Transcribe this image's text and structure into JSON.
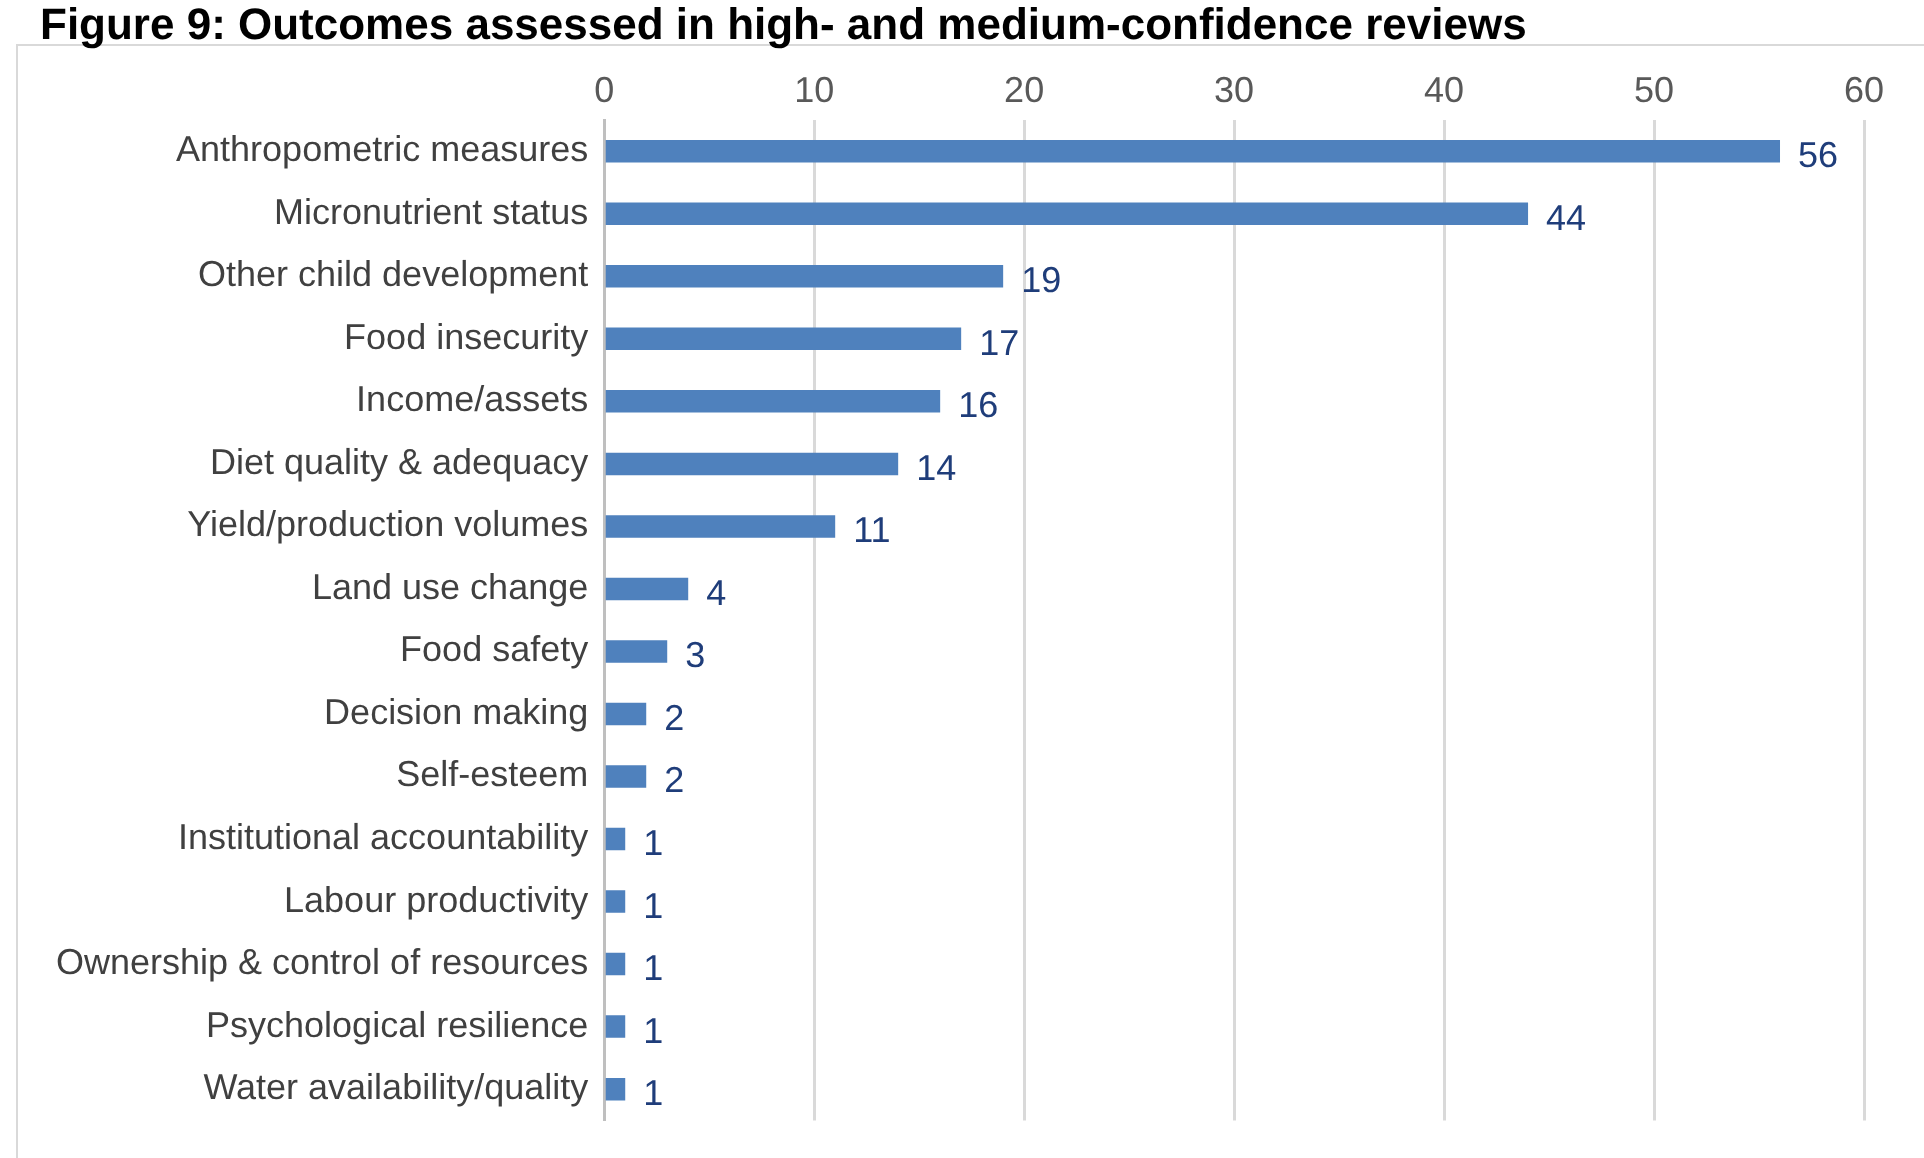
{
  "chart_data": {
    "type": "bar",
    "orientation": "horizontal",
    "title": "Figure 9: Outcomes assessed in high- and medium-confidence reviews",
    "categories": [
      "Anthropometric measures",
      "Micronutrient status",
      "Other child development",
      "Food insecurity",
      "Income/assets",
      "Diet quality & adequacy",
      "Yield/production volumes",
      "Land use change",
      "Food safety",
      "Decision making",
      "Self-esteem",
      "Institutional accountability",
      "Labour productivity",
      "Ownership & control of resources",
      "Psychological resilience",
      "Water availability/quality"
    ],
    "values": [
      56,
      44,
      19,
      17,
      16,
      14,
      11,
      4,
      3,
      2,
      2,
      1,
      1,
      1,
      1,
      1
    ],
    "color": "#4f81bd",
    "xlim": [
      0,
      60
    ],
    "xticks": [
      0,
      10,
      20,
      30,
      40,
      50,
      60
    ],
    "grid": "x",
    "data_labels": true,
    "legend": false
  }
}
